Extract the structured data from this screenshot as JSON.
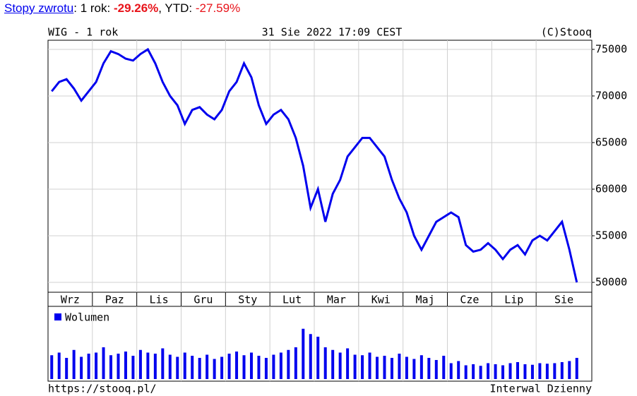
{
  "header": {
    "link": "Stopy zwrotu",
    "label1": ": 1 rok: ",
    "value1": "-29.26%",
    "label2": ", YTD: ",
    "value2": "-27.59%"
  },
  "chart_data": {
    "type": "line",
    "title": "WIG - 1 rok",
    "subtitle": "31 Sie 2022 17:09 CEST",
    "credit": "(C)Stooq",
    "categories": [
      "Wrz",
      null,
      null,
      null,
      null,
      null,
      "Paz",
      null,
      null,
      null,
      null,
      null,
      "Lis",
      null,
      null,
      null,
      null,
      null,
      "Gru",
      null,
      null,
      null,
      null,
      null,
      "Sty",
      null,
      null,
      null,
      null,
      null,
      "Lut",
      null,
      null,
      null,
      null,
      null,
      "Mar",
      null,
      null,
      null,
      null,
      null,
      "Kwi",
      null,
      null,
      null,
      null,
      null,
      "Maj",
      null,
      null,
      null,
      null,
      null,
      "Cze",
      null,
      null,
      null,
      null,
      null,
      "Lip",
      null,
      null,
      null,
      null,
      null,
      "Sie",
      null,
      null,
      null,
      null,
      null
    ],
    "values": [
      70500,
      71500,
      71800,
      70800,
      69500,
      70500,
      71500,
      73500,
      74800,
      74500,
      74000,
      73800,
      74500,
      75000,
      73500,
      71500,
      70000,
      69000,
      67000,
      68500,
      68800,
      68000,
      67500,
      68500,
      70500,
      71500,
      73500,
      72000,
      69000,
      67000,
      68000,
      68500,
      67500,
      65500,
      62500,
      58000,
      60000,
      56500,
      59500,
      61000,
      63500,
      64500,
      65500,
      65500,
      64500,
      63500,
      61000,
      59000,
      57500,
      55000,
      53500,
      55000,
      56500,
      57000,
      57500,
      57000,
      54000,
      53300,
      53500,
      54200,
      53500,
      52500,
      53500,
      54000,
      53000,
      54500,
      55000,
      54500,
      55500,
      56500,
      53500,
      50000
    ],
    "color": "#0000ee",
    "ylim": [
      48940,
      75980
    ],
    "yticks": [
      50000,
      55000,
      60000,
      65000,
      70000,
      75000
    ],
    "grid": true,
    "volume": {
      "name": "Wolumen",
      "color": "#0000ee",
      "ylim": [
        0,
        100
      ],
      "values": [
        45,
        50,
        40,
        55,
        42,
        48,
        50,
        60,
        45,
        48,
        52,
        44,
        55,
        50,
        48,
        58,
        46,
        42,
        50,
        44,
        40,
        46,
        38,
        42,
        48,
        52,
        45,
        50,
        44,
        40,
        46,
        50,
        55,
        60,
        95,
        85,
        80,
        60,
        55,
        50,
        58,
        46,
        45,
        50,
        42,
        44,
        40,
        48,
        42,
        38,
        45,
        40,
        36,
        44,
        30,
        34,
        26,
        28,
        25,
        30,
        28,
        26,
        30,
        32,
        28,
        27,
        30,
        29,
        30,
        32,
        34,
        40
      ]
    },
    "footer_left": "https://stooq.pl/",
    "footer_right": "Interwal Dzienny"
  }
}
